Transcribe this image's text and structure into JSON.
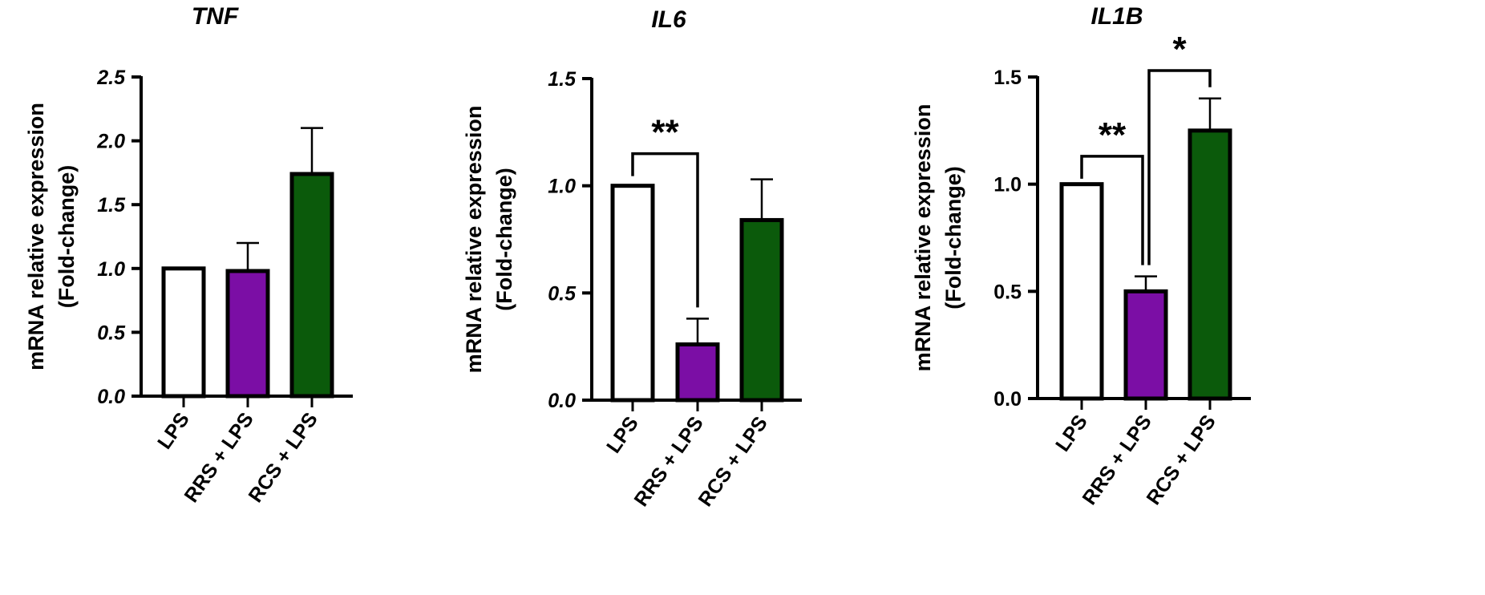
{
  "chart_data": [
    {
      "type": "bar",
      "title": "TNF",
      "ylabel": [
        "mRNA relative expression",
        "(Fold-change)"
      ],
      "categories": [
        "LPS",
        "RRS + LPS",
        "RCS + LPS"
      ],
      "values": [
        1.0,
        0.98,
        1.74
      ],
      "errors": [
        0,
        0.22,
        0.36
      ],
      "ylim": [
        0,
        2.5
      ],
      "yticks": [
        "0.0",
        "0.5",
        "1.0",
        "1.5",
        "2.0",
        "2.5"
      ],
      "colors": [
        "#ffffff",
        "#7b0ea5",
        "#0b5a0b"
      ],
      "significance": []
    },
    {
      "type": "bar",
      "title": "IL6",
      "ylabel": [
        "mRNA relative expression",
        "(Fold-change)"
      ],
      "categories": [
        "LPS",
        "RRS + LPS",
        "RCS + LPS"
      ],
      "values": [
        1.0,
        0.26,
        0.84
      ],
      "errors": [
        0,
        0.12,
        0.19
      ],
      "ylim": [
        0,
        1.5
      ],
      "yticks": [
        "0.0",
        "0.5",
        "1.0",
        "1.5"
      ],
      "colors": [
        "#ffffff",
        "#7b0ea5",
        "#0b5a0b"
      ],
      "significance": [
        {
          "from": 0,
          "to": 1,
          "label": "**"
        }
      ]
    },
    {
      "type": "bar",
      "title": "IL1B",
      "ylabel": [
        "mRNA relative expression",
        "(Fold-change)"
      ],
      "categories": [
        "LPS",
        "RRS + LPS",
        "RCS + LPS"
      ],
      "values": [
        1.0,
        0.5,
        1.25
      ],
      "errors": [
        0,
        0.07,
        0.15
      ],
      "ylim": [
        0,
        1.5
      ],
      "yticks": [
        "0.0",
        "0.5",
        "1.0",
        "1.5"
      ],
      "colors": [
        "#ffffff",
        "#7b0ea5",
        "#0b5a0b"
      ],
      "significance": [
        {
          "from": 0,
          "to": 1,
          "label": "**"
        },
        {
          "from": 1,
          "to": 2,
          "label": "*"
        }
      ]
    }
  ]
}
